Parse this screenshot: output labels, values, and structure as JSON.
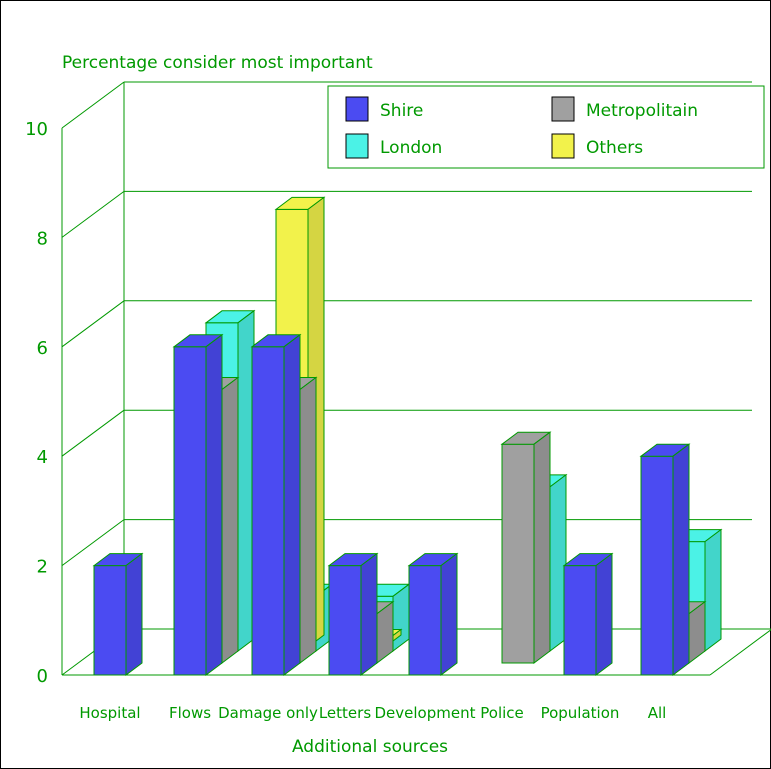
{
  "chart_data": {
    "type": "bar",
    "title": "Percentage consider most important",
    "xlabel": "Additional sources",
    "ylabel": "",
    "ylim": [
      0,
      10
    ],
    "yticks": [
      0,
      2,
      4,
      6,
      8,
      10
    ],
    "grid": true,
    "legend_position": "top-right",
    "categories": [
      "Hospital",
      "Flows",
      "Damage only",
      "Letters",
      "Development",
      "Police",
      "Population",
      "All"
    ],
    "series": [
      {
        "name": "Shire",
        "color": "#4b4bf2",
        "values": [
          2.0,
          6.0,
          6.0,
          2.0,
          2.0,
          0,
          2.0,
          4.0
        ]
      },
      {
        "name": "Metropolitain",
        "color": "#a0a0a0",
        "values": [
          0,
          5.0,
          5.0,
          0.9,
          0,
          4.0,
          0,
          0.9
        ]
      },
      {
        "name": "London",
        "color": "#4bf2e6",
        "values": [
          0,
          6.0,
          1.0,
          1.0,
          0,
          3.0,
          0,
          2.0
        ]
      },
      {
        "name": "Others",
        "color": "#f2f24b",
        "values": [
          0,
          0,
          8.0,
          0.1,
          0,
          0,
          0,
          0
        ]
      }
    ],
    "colors": {
      "axis": "#009900"
    }
  }
}
